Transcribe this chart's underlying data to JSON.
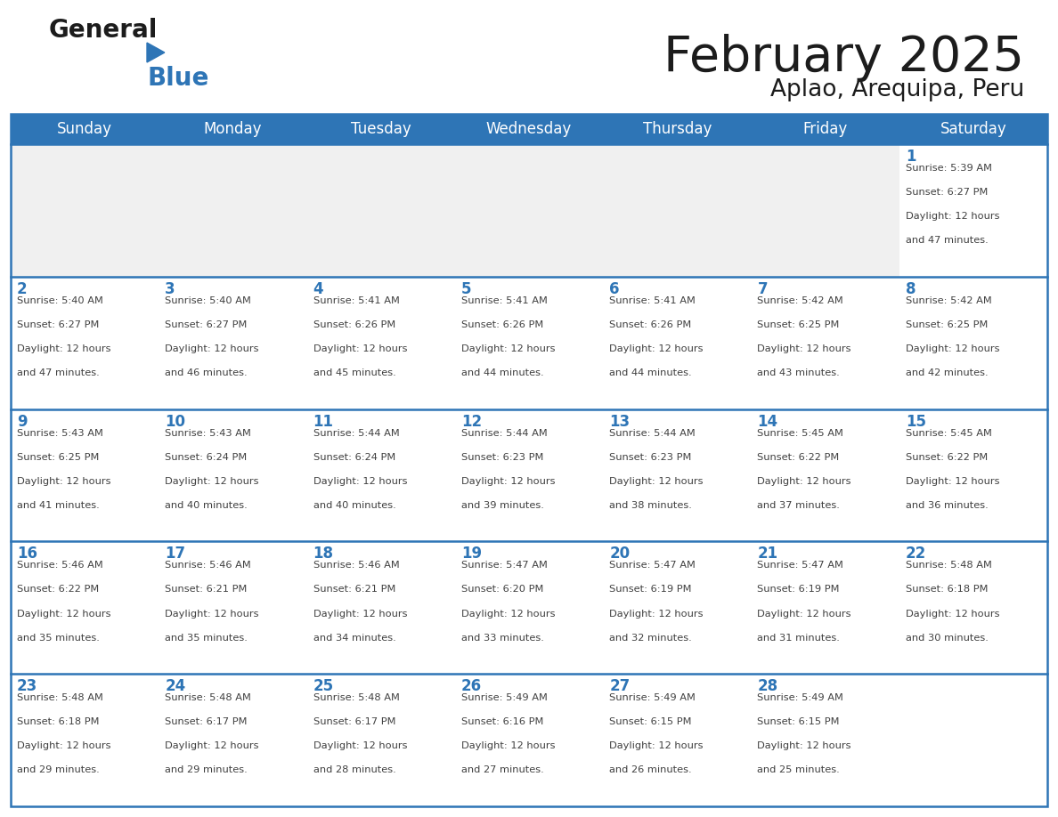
{
  "title": "February 2025",
  "subtitle": "Aplao, Arequipa, Peru",
  "days_of_week": [
    "Sunday",
    "Monday",
    "Tuesday",
    "Wednesday",
    "Thursday",
    "Friday",
    "Saturday"
  ],
  "header_bg": "#2E75B6",
  "header_text": "#FFFFFF",
  "cell_bg_white": "#FFFFFF",
  "cell_bg_gray": "#F0F0F0",
  "line_color": "#2E75B6",
  "day_number_color": "#2E75B6",
  "text_color": "#404040",
  "calendar_data": [
    [
      null,
      null,
      null,
      null,
      null,
      null,
      {
        "day": 1,
        "sunrise": "5:39 AM",
        "sunset": "6:27 PM",
        "daylight_mins": "47 minutes."
      }
    ],
    [
      {
        "day": 2,
        "sunrise": "5:40 AM",
        "sunset": "6:27 PM",
        "daylight_mins": "47 minutes."
      },
      {
        "day": 3,
        "sunrise": "5:40 AM",
        "sunset": "6:27 PM",
        "daylight_mins": "46 minutes."
      },
      {
        "day": 4,
        "sunrise": "5:41 AM",
        "sunset": "6:26 PM",
        "daylight_mins": "45 minutes."
      },
      {
        "day": 5,
        "sunrise": "5:41 AM",
        "sunset": "6:26 PM",
        "daylight_mins": "44 minutes."
      },
      {
        "day": 6,
        "sunrise": "5:41 AM",
        "sunset": "6:26 PM",
        "daylight_mins": "44 minutes."
      },
      {
        "day": 7,
        "sunrise": "5:42 AM",
        "sunset": "6:25 PM",
        "daylight_mins": "43 minutes."
      },
      {
        "day": 8,
        "sunrise": "5:42 AM",
        "sunset": "6:25 PM",
        "daylight_mins": "42 minutes."
      }
    ],
    [
      {
        "day": 9,
        "sunrise": "5:43 AM",
        "sunset": "6:25 PM",
        "daylight_mins": "41 minutes."
      },
      {
        "day": 10,
        "sunrise": "5:43 AM",
        "sunset": "6:24 PM",
        "daylight_mins": "40 minutes."
      },
      {
        "day": 11,
        "sunrise": "5:44 AM",
        "sunset": "6:24 PM",
        "daylight_mins": "40 minutes."
      },
      {
        "day": 12,
        "sunrise": "5:44 AM",
        "sunset": "6:23 PM",
        "daylight_mins": "39 minutes."
      },
      {
        "day": 13,
        "sunrise": "5:44 AM",
        "sunset": "6:23 PM",
        "daylight_mins": "38 minutes."
      },
      {
        "day": 14,
        "sunrise": "5:45 AM",
        "sunset": "6:22 PM",
        "daylight_mins": "37 minutes."
      },
      {
        "day": 15,
        "sunrise": "5:45 AM",
        "sunset": "6:22 PM",
        "daylight_mins": "36 minutes."
      }
    ],
    [
      {
        "day": 16,
        "sunrise": "5:46 AM",
        "sunset": "6:22 PM",
        "daylight_mins": "35 minutes."
      },
      {
        "day": 17,
        "sunrise": "5:46 AM",
        "sunset": "6:21 PM",
        "daylight_mins": "35 minutes."
      },
      {
        "day": 18,
        "sunrise": "5:46 AM",
        "sunset": "6:21 PM",
        "daylight_mins": "34 minutes."
      },
      {
        "day": 19,
        "sunrise": "5:47 AM",
        "sunset": "6:20 PM",
        "daylight_mins": "33 minutes."
      },
      {
        "day": 20,
        "sunrise": "5:47 AM",
        "sunset": "6:19 PM",
        "daylight_mins": "32 minutes."
      },
      {
        "day": 21,
        "sunrise": "5:47 AM",
        "sunset": "6:19 PM",
        "daylight_mins": "31 minutes."
      },
      {
        "day": 22,
        "sunrise": "5:48 AM",
        "sunset": "6:18 PM",
        "daylight_mins": "30 minutes."
      }
    ],
    [
      {
        "day": 23,
        "sunrise": "5:48 AM",
        "sunset": "6:18 PM",
        "daylight_mins": "29 minutes."
      },
      {
        "day": 24,
        "sunrise": "5:48 AM",
        "sunset": "6:17 PM",
        "daylight_mins": "29 minutes."
      },
      {
        "day": 25,
        "sunrise": "5:48 AM",
        "sunset": "6:17 PM",
        "daylight_mins": "28 minutes."
      },
      {
        "day": 26,
        "sunrise": "5:49 AM",
        "sunset": "6:16 PM",
        "daylight_mins": "27 minutes."
      },
      {
        "day": 27,
        "sunrise": "5:49 AM",
        "sunset": "6:15 PM",
        "daylight_mins": "26 minutes."
      },
      {
        "day": 28,
        "sunrise": "5:49 AM",
        "sunset": "6:15 PM",
        "daylight_mins": "25 minutes."
      },
      null
    ]
  ]
}
